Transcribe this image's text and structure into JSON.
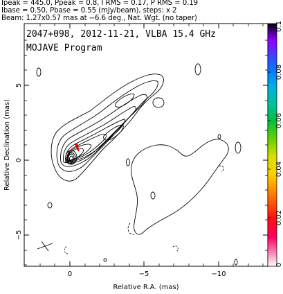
{
  "header": {
    "line1": "Ipeak = 445.0, Ppeak = 0.8, I RMS = 0.17, P RMS = 0.19",
    "line2": "Ibase = 0.50, Pbase = 0.55 (mJy/beam), steps: x 2",
    "line3": "Beam: 1.27x0.57 mas at −6.6 deg., Nat. Wgt. (no taper)"
  },
  "plot": {
    "title_line1": "2047+098, 2012-11-21, VLBA 15.4 GHz",
    "title_line2": "MOJAVE Program",
    "xlabel": "Relative R.A. (mas)",
    "ylabel": "Relative Declination (mas)",
    "x_ticks": [
      "0",
      "−5",
      "−10"
    ],
    "y_ticks": [
      "5",
      "0",
      "−5"
    ]
  },
  "colorbar": {
    "ticks": [
      "0.1",
      "0.08",
      "0.06",
      "0.04",
      "0.02",
      "0"
    ]
  },
  "colors": {
    "contour": "#000000",
    "polarization_vector": "#e00000"
  }
}
